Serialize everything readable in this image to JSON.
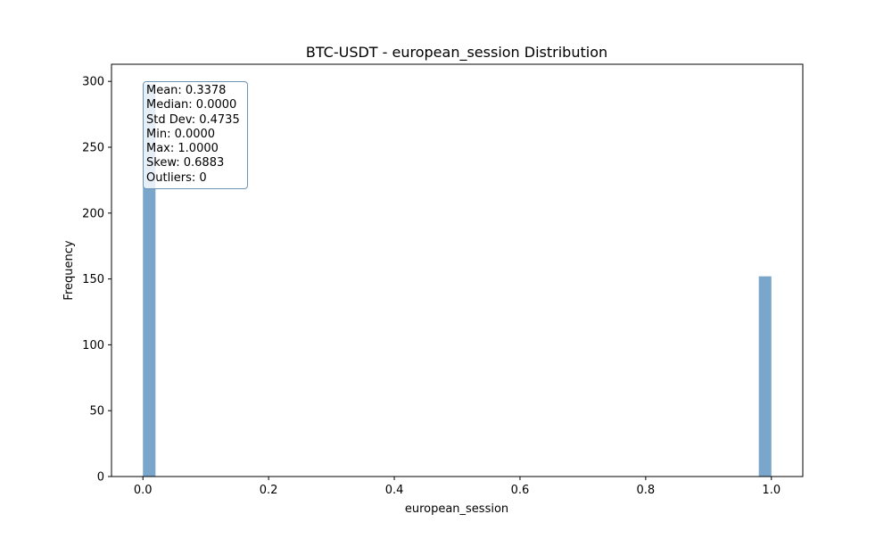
{
  "chart_data": {
    "type": "bar",
    "title": "BTC-USDT - european_session Distribution",
    "xlabel": "european_session",
    "ylabel": "Frequency",
    "xlim": [
      -0.05,
      1.05
    ],
    "ylim": [
      0,
      313
    ],
    "x_ticks": [
      "0.0",
      "0.2",
      "0.4",
      "0.6",
      "0.8",
      "1.0"
    ],
    "x_tick_values": [
      0.0,
      0.2,
      0.4,
      0.6,
      0.8,
      1.0
    ],
    "y_ticks": [
      "0",
      "50",
      "100",
      "150",
      "200",
      "250",
      "300"
    ],
    "y_tick_values": [
      0,
      50,
      100,
      150,
      200,
      250,
      300
    ],
    "bin_width": 0.02,
    "bars": [
      {
        "x_start": 0.0,
        "x_end": 0.02,
        "value": 298
      },
      {
        "x_start": 0.98,
        "x_end": 1.0,
        "value": 152
      }
    ],
    "bar_color": "#7ba6cc",
    "grid": false,
    "stats_box": {
      "mean": "Mean: 0.3378",
      "median": "Median: 0.0000",
      "std": "Std Dev: 0.4735",
      "min": "Min: 0.0000",
      "max": "Max: 1.0000",
      "skew": "Skew: 0.6883",
      "outliers": "Outliers: 0"
    }
  }
}
